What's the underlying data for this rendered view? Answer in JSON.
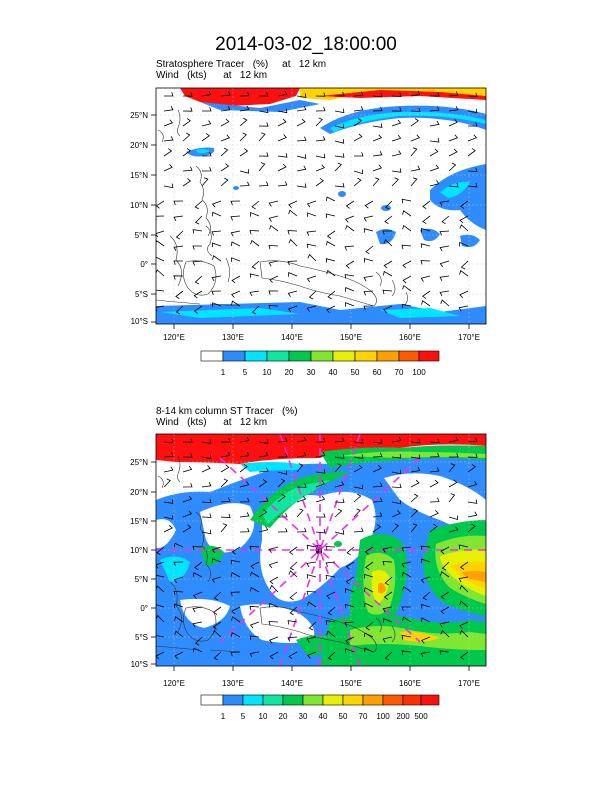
{
  "title": "2014-03-02_18:00:00",
  "panels": [
    {
      "id": "top",
      "subtitle_line1": "Stratosphere Tracer   (%)     at   12 km",
      "subtitle_line2": "Wind   (kts)      at   12 km",
      "lat_labels": [
        "25°N",
        "20°N",
        "15°N",
        "10°N",
        "5°N",
        "0°",
        "5°S",
        "10°S"
      ],
      "lon_labels": [
        "120°E",
        "130°E",
        "140°E",
        "150°E",
        "160°E",
        "170°E"
      ],
      "colorbar_labels": [
        "1",
        "5",
        "10",
        "20",
        "30",
        "40",
        "50",
        "60",
        "70",
        "100"
      ]
    },
    {
      "id": "bottom",
      "subtitle_line1": "8-14 km column ST Tracer   (%)",
      "subtitle_line2": "Wind   (kts)      at   12 km",
      "lat_labels": [
        "25°N",
        "20°N",
        "15°N",
        "10°N",
        "5°N",
        "0°",
        "5°S",
        "10°S"
      ],
      "lon_labels": [
        "120°E",
        "130°E",
        "140°E",
        "150°E",
        "160°E",
        "170°E"
      ],
      "colorbar_labels": [
        "1",
        "5",
        "10",
        "20",
        "30",
        "40",
        "50",
        "70",
        "100",
        "200",
        "500"
      ]
    }
  ],
  "colors": {
    "c1": "#ffffff",
    "c2": "#2f8cff",
    "c3": "#00e5ff",
    "c4": "#11e6a0",
    "c5": "#00c84c",
    "c6": "#80e632",
    "c7": "#e6f000",
    "c8": "#ffd200",
    "c9": "#ffa000",
    "c10": "#ff5a00",
    "c11": "#ff1010",
    "dash_lines": "#ee30ee"
  }
}
